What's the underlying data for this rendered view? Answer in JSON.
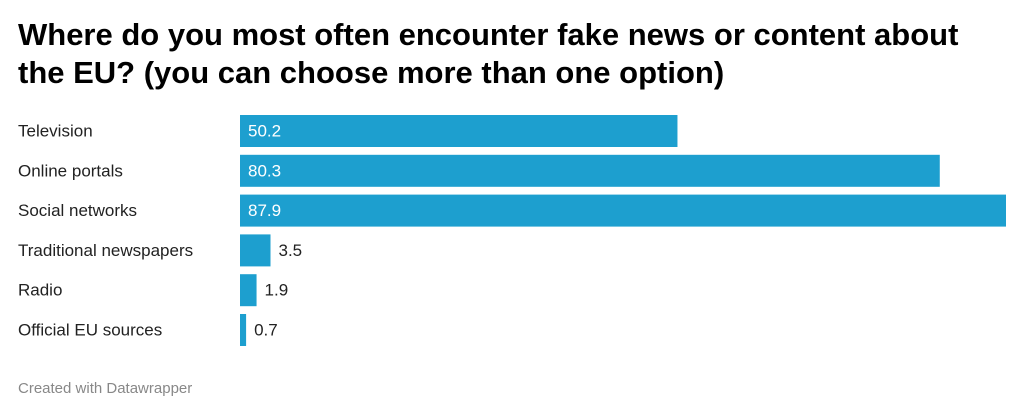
{
  "chart_data": {
    "type": "bar",
    "orientation": "horizontal",
    "title": "Where do you most often encounter fake news or content about the EU? (you can choose more than one option)",
    "categories": [
      "Television",
      "Online portals",
      "Social networks",
      "Traditional newspapers",
      "Radio",
      "Official EU sources"
    ],
    "values": [
      50.2,
      80.3,
      87.9,
      3.5,
      1.9,
      0.7
    ],
    "color": "#1d9fcf",
    "footer": "Created with Datawrapper"
  }
}
